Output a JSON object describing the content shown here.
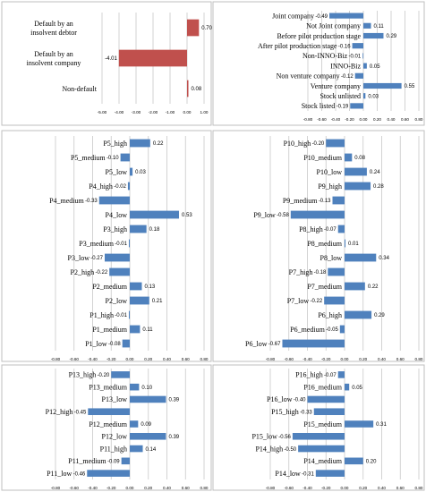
{
  "chart_data": [
    {
      "type": "bar",
      "orientation": "horizontal",
      "categories": [
        "Default by an insolvent debtor",
        "Default by an insolvent company",
        "Non-default"
      ],
      "values": [
        0.7,
        -4.01,
        0.08
      ],
      "value_labels": [
        "0.70",
        "-4.01",
        "0.08"
      ],
      "xlim": [
        -5.0,
        1.0
      ],
      "xticks": [
        "-5.00",
        "-4.00",
        "-3.00",
        "-2.00",
        "-1.00",
        "0.00",
        "1.00"
      ],
      "bar_color": "#c0504d",
      "grid": true
    },
    {
      "type": "bar",
      "orientation": "horizontal",
      "categories": [
        "Joint company",
        "Not Joint company",
        "Before pilot production stage",
        "After pilot production stage",
        "Non-INNO-Biz",
        "INNO-Biz",
        "Non venture company",
        "Venture company",
        "Stock unlisted",
        "Stock listed"
      ],
      "values": [
        -0.49,
        0.11,
        0.29,
        -0.16,
        -0.01,
        0.05,
        -0.12,
        0.55,
        0.03,
        -0.19
      ],
      "value_labels": [
        "-0.49",
        "0.11",
        "0.29",
        "-0.16",
        "-0.01",
        "0.05",
        "-0.12",
        "0.55",
        "0.03",
        "-0.19"
      ],
      "xlim": [
        -0.8,
        0.8
      ],
      "xticks": [
        "-0.80",
        "-0.60",
        "-0.40",
        "-0.20",
        "0.00",
        "0.20",
        "0.40",
        "0.60",
        "0.80"
      ],
      "bar_color": "#4f81bd",
      "grid": true
    },
    {
      "type": "bar",
      "orientation": "horizontal",
      "categories": [
        "P5_high",
        "P5_medium",
        "P5_low",
        "P4_high",
        "P4_medium",
        "P4_low",
        "P3_high",
        "P3_medium",
        "P3_low",
        "P2_high",
        "P2_medium",
        "P2_low",
        "P1_high",
        "P1_medium",
        "P1_low"
      ],
      "values": [
        0.22,
        -0.1,
        0.03,
        -0.02,
        -0.33,
        0.53,
        0.18,
        -0.01,
        -0.27,
        -0.22,
        0.13,
        0.21,
        -0.01,
        0.11,
        -0.08
      ],
      "value_labels": [
        "0.22",
        "-0.10",
        "0.03",
        "-0.02",
        "-0.33",
        "0.53",
        "0.18",
        "-0.01",
        "-0.27",
        "-0.22",
        "0.13",
        "0.21",
        "-0.01",
        "0.11",
        "-0.08"
      ],
      "xlim": [
        -0.8,
        0.8
      ],
      "xticks": [
        "-0.80",
        "-0.60",
        "-0.40",
        "-0.20",
        "0.00",
        "0.20",
        "0.40",
        "0.60",
        "0.80"
      ],
      "bar_color": "#4f81bd",
      "grid": true
    },
    {
      "type": "bar",
      "orientation": "horizontal",
      "categories": [
        "P10_high",
        "P10_medium",
        "P10_low",
        "P9_high",
        "P9_medium",
        "P9_low",
        "P8_high",
        "P8_medium",
        "P8_low",
        "P7_high",
        "P7_medium",
        "P7_low",
        "P6_high",
        "P6_medium",
        "P6_low"
      ],
      "values": [
        -0.2,
        0.08,
        0.24,
        0.28,
        -0.13,
        -0.58,
        -0.07,
        0.01,
        0.34,
        -0.18,
        0.22,
        -0.22,
        0.29,
        -0.05,
        -0.67
      ],
      "value_labels": [
        "-0.20",
        "0.08",
        "0.24",
        "0.28",
        "-0.13",
        "-0.58",
        "-0.07",
        "0.01",
        "0.34",
        "-0.18",
        "0.22",
        "-0.22",
        "0.29",
        "-0.05",
        "-0.67"
      ],
      "xlim": [
        -0.8,
        0.8
      ],
      "xticks": [
        "-0.80",
        "-0.60",
        "-0.40",
        "-0.20",
        "0.00",
        "0.20",
        "0.40",
        "0.60",
        "0.80"
      ],
      "bar_color": "#4f81bd",
      "grid": true
    },
    {
      "type": "bar",
      "orientation": "horizontal",
      "categories": [
        "P13_high",
        "P13_medium",
        "P13_low",
        "P12_high",
        "P12_medium",
        "P12_low",
        "P11_high",
        "P11_medium",
        "P11_low"
      ],
      "values": [
        -0.2,
        0.1,
        0.39,
        -0.45,
        0.09,
        0.39,
        0.14,
        -0.09,
        -0.46
      ],
      "value_labels": [
        "-0.20",
        "0.10",
        "0.39",
        "-0.45",
        "0.09",
        "0.39",
        "0.14",
        "-0.09",
        "-0.46"
      ],
      "xlim": [
        -0.8,
        0.8
      ],
      "xticks": [
        "-0.80",
        "-0.60",
        "-0.40",
        "-0.20",
        "0.00",
        "0.20",
        "0.40",
        "0.60",
        "0.80"
      ],
      "bar_color": "#4f81bd",
      "grid": true
    },
    {
      "type": "bar",
      "orientation": "horizontal",
      "categories": [
        "P16_high",
        "P16_medium",
        "P16_low",
        "P15_high",
        "P15_medium",
        "P15_low",
        "P14_high",
        "P14_medium",
        "P14_low"
      ],
      "values": [
        -0.07,
        0.05,
        -0.4,
        -0.33,
        0.31,
        -0.56,
        -0.5,
        0.2,
        -0.31
      ],
      "value_labels": [
        "-0.07",
        "0.05",
        "-0.40",
        "-0.33",
        "0.31",
        "-0.56",
        "-0.50",
        "0.20",
        "-0.31"
      ],
      "xlim": [
        -0.8,
        0.8
      ],
      "xticks": [
        "-0.80",
        "-0.60",
        "-0.40",
        "-0.20",
        "0.00",
        "0.20",
        "0.40",
        "0.60",
        "0.80"
      ],
      "bar_color": "#4f81bd",
      "grid": true
    }
  ]
}
